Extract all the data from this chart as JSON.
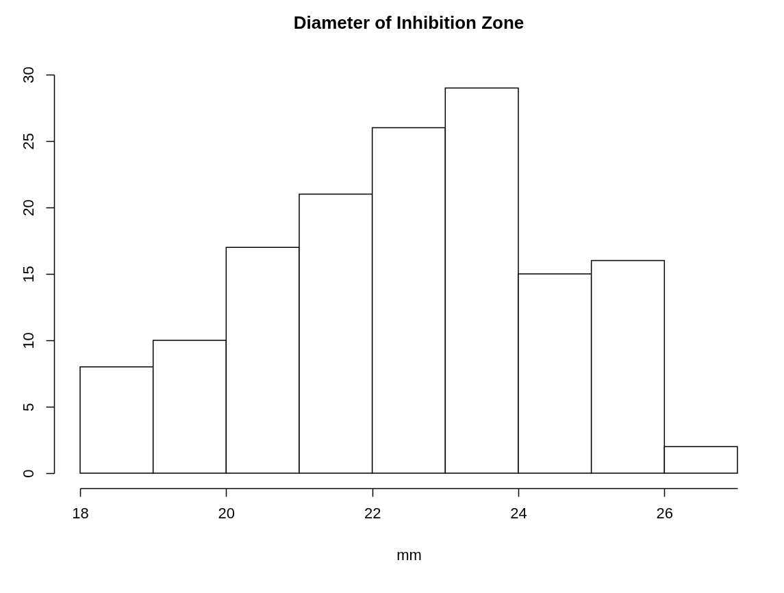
{
  "chart_data": {
    "type": "histogram",
    "title": "Diameter of Inhibition Zone",
    "xlabel": "mm",
    "bins": [
      18,
      19,
      20,
      21,
      22,
      23,
      24,
      25,
      26,
      27
    ],
    "values": [
      8,
      10,
      17,
      21,
      26,
      29,
      15,
      16,
      2
    ],
    "color": "#ffffff",
    "xlim": [
      18,
      27
    ],
    "xticks": [
      18,
      20,
      22,
      24,
      26
    ],
    "ylim": [
      0,
      30
    ],
    "yticks": [
      0,
      5,
      10,
      15,
      20,
      25,
      30
    ]
  }
}
